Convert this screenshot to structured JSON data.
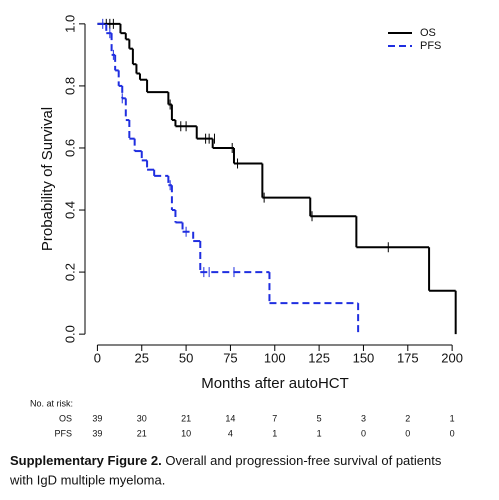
{
  "chart_data": {
    "type": "step",
    "x_label": "Months after autoHCT",
    "y_label": "Probability of Survival",
    "xlim": [
      -7,
      205
    ],
    "ylim": [
      -0.035,
      1.035
    ],
    "xticks": [
      0,
      25,
      50,
      75,
      100,
      125,
      150,
      175,
      200
    ],
    "yticks": [
      {
        "value": 0,
        "label": "0.0"
      },
      {
        "value": 0.2,
        "label": "0.2"
      },
      {
        "value": 0.4,
        "label": "0.4"
      },
      {
        "value": 0.6,
        "label": "0.6"
      },
      {
        "value": 0.8,
        "label": "0.8"
      },
      {
        "value": 1,
        "label": "1.0"
      }
    ],
    "legend": "top-right",
    "series": [
      {
        "name": "OS",
        "color": "#000000",
        "dashed": false,
        "x": [
          0,
          13,
          16,
          18,
          20,
          22,
          24,
          28,
          40,
          42,
          44,
          56,
          65,
          77,
          93,
          120,
          146,
          187,
          202
        ],
        "values": [
          1,
          0.97,
          0.95,
          0.92,
          0.87,
          0.84,
          0.82,
          0.78,
          0.74,
          0.69,
          0.67,
          0.63,
          0.6,
          0.55,
          0.44,
          0.38,
          0.28,
          0.14,
          0
        ],
        "censor_x": [
          5,
          7,
          9,
          41,
          47,
          50,
          61,
          63,
          66,
          76,
          79,
          94,
          121,
          164
        ],
        "censor_values": [
          1,
          1,
          1,
          0.74,
          0.67,
          0.67,
          0.63,
          0.63,
          0.63,
          0.6,
          0.55,
          0.44,
          0.38,
          0.28
        ]
      },
      {
        "name": "PFS",
        "color": "#1f2ee0",
        "dashed": true,
        "x": [
          0,
          5,
          8,
          10,
          12,
          14,
          16,
          18,
          21,
          25,
          28,
          32,
          40,
          42,
          44,
          48,
          54,
          58,
          97,
          147
        ],
        "values": [
          1,
          0.97,
          0.9,
          0.85,
          0.8,
          0.76,
          0.69,
          0.63,
          0.59,
          0.56,
          0.53,
          0.51,
          0.48,
          0.4,
          0.36,
          0.33,
          0.3,
          0.2,
          0.1,
          0
        ],
        "censor_x": [
          3,
          7,
          9,
          14,
          41,
          50,
          60,
          63,
          77
        ],
        "censor_values": [
          1,
          0.97,
          0.9,
          0.76,
          0.48,
          0.33,
          0.2,
          0.2,
          0.2
        ]
      }
    ],
    "risk_table": {
      "title": "No. at risk:",
      "rows": [
        {
          "label": "OS",
          "values": [
            39,
            30,
            21,
            14,
            7,
            5,
            3,
            2,
            1
          ]
        },
        {
          "label": "PFS",
          "values": [
            39,
            21,
            10,
            4,
            1,
            1,
            0,
            0,
            0
          ]
        }
      ]
    }
  },
  "caption": {
    "label": "Supplementary Figure 2.",
    "lines": [
      "Overall and progression-free survival of patients",
      "with IgD multiple myeloma."
    ]
  }
}
